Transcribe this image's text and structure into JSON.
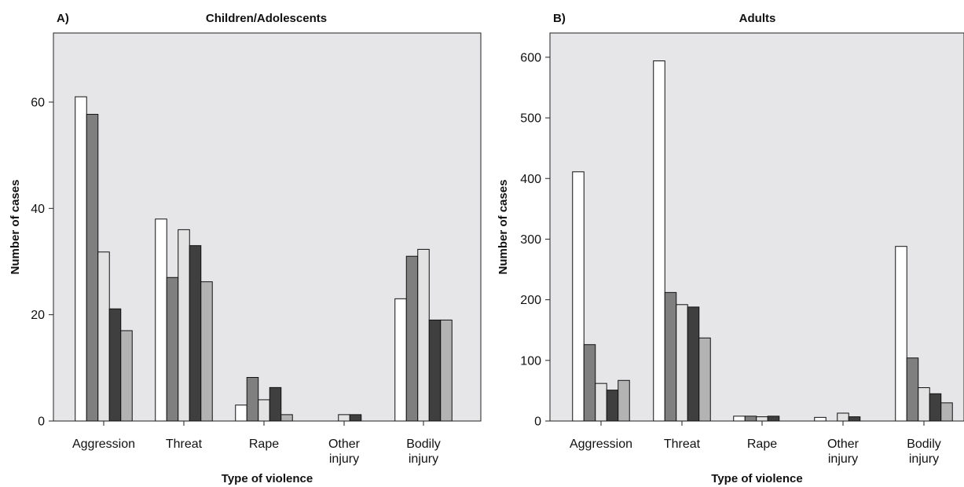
{
  "chart_data": [
    {
      "type": "bar",
      "panel_label": "A)",
      "title": "Children/Adolescents",
      "xlabel": "Type of violence",
      "ylabel": "Number of cases",
      "categories": [
        [
          "Aggression"
        ],
        [
          "Threat"
        ],
        [
          "Rape"
        ],
        [
          "Other",
          "injury"
        ],
        [
          "Bodily",
          "injury"
        ]
      ],
      "ylim": [
        0,
        73
      ],
      "yticks": [
        0,
        20,
        40,
        60
      ],
      "grid": false,
      "series": [
        {
          "color": "#ffffff",
          "values": [
            61,
            38,
            3,
            0,
            23
          ]
        },
        {
          "color": "#7f7f7f",
          "values": [
            57.7,
            27,
            8.2,
            0,
            31
          ]
        },
        {
          "color": "#e3e3e3",
          "values": [
            31.8,
            36,
            4,
            1.2,
            32.3
          ]
        },
        {
          "color": "#3f3f3f",
          "values": [
            21.1,
            33,
            6.3,
            1.2,
            19
          ]
        },
        {
          "color": "#b3b3b3",
          "values": [
            17,
            26.2,
            1.2,
            0,
            19
          ]
        }
      ]
    },
    {
      "type": "bar",
      "panel_label": "B)",
      "title": "Adults",
      "xlabel": "Type of violence",
      "ylabel": "Number of cases",
      "categories": [
        [
          "Aggression"
        ],
        [
          "Threat"
        ],
        [
          "Rape"
        ],
        [
          "Other",
          "injury"
        ],
        [
          "Bodily",
          "injury"
        ]
      ],
      "ylim": [
        0,
        640
      ],
      "yticks": [
        0,
        100,
        200,
        300,
        400,
        500,
        600
      ],
      "grid": false,
      "series": [
        {
          "color": "#ffffff",
          "values": [
            411,
            594,
            8,
            6,
            288
          ]
        },
        {
          "color": "#7f7f7f",
          "values": [
            126,
            212,
            8,
            0,
            104
          ]
        },
        {
          "color": "#e3e3e3",
          "values": [
            62,
            192,
            7,
            13,
            55
          ]
        },
        {
          "color": "#3f3f3f",
          "values": [
            51,
            188,
            8,
            7,
            45
          ]
        },
        {
          "color": "#b3b3b3",
          "values": [
            67,
            137,
            0,
            0,
            30
          ]
        }
      ]
    }
  ]
}
